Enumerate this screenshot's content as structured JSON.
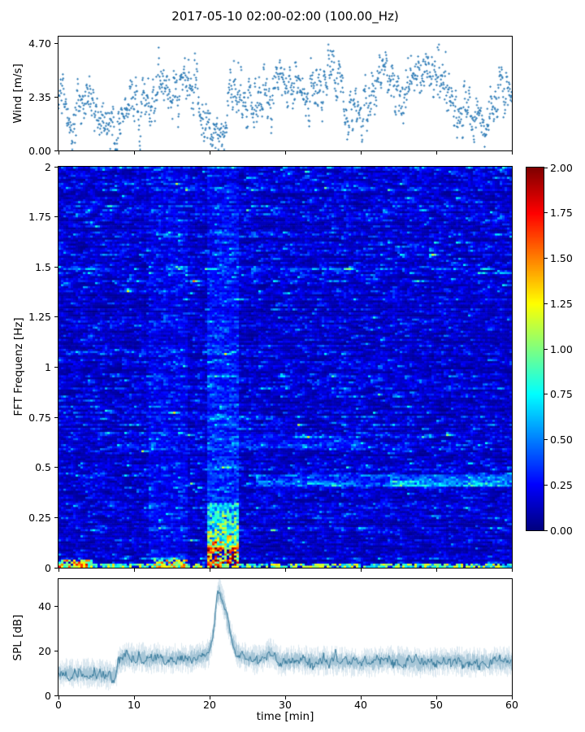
{
  "title": "2017-05-10 02:00-02:00 (100.00_Hz)",
  "x_axis": {
    "label": "time [min]",
    "tick_values": [
      0,
      10,
      20,
      30,
      40,
      50,
      60
    ],
    "tick_labels": [
      "0",
      "10",
      "20",
      "30",
      "40",
      "50",
      "60"
    ],
    "lim": [
      0,
      60
    ]
  },
  "wind_panel": {
    "ylabel": "Wind [m/s]",
    "ytick_values": [
      0,
      2.35,
      4.7
    ],
    "ytick_labels": [
      "0.00",
      "2.35",
      "4.70"
    ],
    "ylim": [
      0,
      5.0
    ]
  },
  "spectrogram_panel": {
    "ylabel": "FFT Frequenz [Hz]",
    "ytick_values": [
      0,
      0.25,
      0.5,
      0.75,
      1,
      1.25,
      1.5,
      1.75,
      2
    ],
    "ytick_labels": [
      "0",
      "0.25",
      "0.5",
      "0.75",
      "1",
      "1.25",
      "1.5",
      "1.75",
      "2"
    ],
    "ylim": [
      0,
      2
    ]
  },
  "colorbar": {
    "tick_values": [
      0,
      0.25,
      0.5,
      0.75,
      1,
      1.25,
      1.5,
      1.75,
      2
    ],
    "tick_labels": [
      "0.00",
      "0.25",
      "0.50",
      "0.75",
      "1.00",
      "1.25",
      "1.50",
      "1.75",
      "2.00"
    ],
    "lim": [
      0,
      2
    ],
    "colormap": "jet"
  },
  "spl_panel": {
    "ylabel": "SPL [dB]",
    "ytick_values": [
      0,
      20,
      40
    ],
    "ytick_labels": [
      "0",
      "20",
      "40"
    ],
    "ylim": [
      0,
      52
    ]
  },
  "chart_data": [
    {
      "type": "scatter",
      "name": "wind",
      "title": "wind speed vs time",
      "xlabel": "time [min]",
      "ylabel": "Wind [m/s]",
      "xlim": [
        0,
        60
      ],
      "ylim": [
        0,
        4.7
      ],
      "marker_color": "#2d7bb6",
      "n_points": 1350,
      "spread": 0.7,
      "mean_profile": [
        [
          0,
          2.3
        ],
        [
          1,
          1.8
        ],
        [
          2,
          1.4
        ],
        [
          3,
          2.0
        ],
        [
          4,
          2.3
        ],
        [
          5,
          1.7
        ],
        [
          6,
          1.6
        ],
        [
          7,
          0.9
        ],
        [
          8,
          1.0
        ],
        [
          9,
          1.6
        ],
        [
          10,
          2.3
        ],
        [
          11,
          2.6
        ],
        [
          12,
          1.9
        ],
        [
          13,
          1.7
        ],
        [
          14,
          2.6
        ],
        [
          15,
          2.9
        ],
        [
          16,
          2.8
        ],
        [
          17,
          2.9
        ],
        [
          18,
          2.2
        ],
        [
          19,
          1.3
        ],
        [
          20,
          0.9
        ],
        [
          21,
          0.8
        ],
        [
          22,
          1.5
        ],
        [
          23,
          2.7
        ],
        [
          24,
          2.9
        ],
        [
          25,
          2.8
        ],
        [
          26,
          2.4
        ],
        [
          27,
          2.6
        ],
        [
          28,
          2.9
        ],
        [
          29,
          2.8
        ],
        [
          30,
          3.0
        ],
        [
          31,
          3.0
        ],
        [
          32,
          2.8
        ],
        [
          33,
          2.9
        ],
        [
          34,
          2.6
        ],
        [
          35,
          2.8
        ],
        [
          36,
          3.0
        ],
        [
          37,
          3.1
        ],
        [
          38,
          2.2
        ],
        [
          39,
          1.2
        ],
        [
          40,
          1.0
        ],
        [
          41,
          1.3
        ],
        [
          42,
          2.4
        ],
        [
          43,
          2.8
        ],
        [
          44,
          2.9
        ],
        [
          45,
          2.8
        ],
        [
          46,
          2.5
        ],
        [
          47,
          2.7
        ],
        [
          48,
          3.0
        ],
        [
          49,
          3.1
        ],
        [
          50,
          2.9
        ],
        [
          51,
          3.0
        ],
        [
          52,
          2.7
        ],
        [
          53,
          2.4
        ],
        [
          54,
          1.8
        ],
        [
          55,
          1.2
        ],
        [
          56,
          0.9
        ],
        [
          57,
          1.5
        ],
        [
          58,
          2.3
        ],
        [
          59,
          2.4
        ],
        [
          60,
          2.5
        ]
      ]
    },
    {
      "type": "heatmap",
      "name": "fft-spectrogram",
      "title": "FFT spectrogram",
      "xlabel": "time [min]",
      "ylabel": "FFT Frequenz [Hz]",
      "xlim": [
        0,
        60
      ],
      "ylim": [
        0,
        2
      ],
      "clim": [
        0,
        2
      ],
      "colormap": "jet",
      "base_mean": 0.16,
      "grid": {
        "cols": 186,
        "rows": 198
      },
      "features": [
        {
          "name": "surface-band",
          "t0": 0,
          "t1": 60,
          "f0": 0,
          "f1": 0.025,
          "gain": 1.1,
          "mode": "hot"
        },
        {
          "name": "surface-hot-early",
          "t0": 0,
          "t1": 4.5,
          "f0": 0,
          "f1": 0.04,
          "gain": 1.5,
          "mode": "hot"
        },
        {
          "name": "surface-hot-mid",
          "t0": 12.5,
          "t1": 17,
          "f0": 0,
          "f1": 0.04,
          "gain": 1.3,
          "mode": "hot"
        },
        {
          "name": "event-core",
          "t0": 19.8,
          "t1": 24,
          "f0": 0,
          "f1": 0.1,
          "gain": 1.8,
          "mode": "hot"
        },
        {
          "name": "event-mid",
          "t0": 19.8,
          "t1": 24,
          "f0": 0.1,
          "f1": 0.32,
          "gain": 1.0,
          "mode": "add"
        },
        {
          "name": "event-upper",
          "t0": 19.8,
          "t1": 24,
          "f0": 0.32,
          "f1": 2,
          "gain": 0.2,
          "mode": "add"
        },
        {
          "name": "enhanced-12-17",
          "t0": 12,
          "t1": 17,
          "f0": 0,
          "f1": 2,
          "gain": 0.1,
          "mode": "add"
        },
        {
          "name": "band-0.44",
          "t0": 26,
          "t1": 60,
          "f0": 0.4,
          "f1": 0.465,
          "gain": 0.32,
          "mode": "add"
        },
        {
          "name": "band-0.44-strong",
          "t0": 44,
          "t1": 60,
          "f0": 0.405,
          "f1": 0.46,
          "gain": 0.22,
          "mode": "add"
        },
        {
          "name": "band-0.63",
          "t0": 23,
          "t1": 40,
          "f0": 0.6,
          "f1": 0.655,
          "gain": 0.14,
          "mode": "add"
        }
      ]
    },
    {
      "type": "line",
      "name": "spl",
      "title": "SPL vs time",
      "xlabel": "time [min]",
      "ylabel": "SPL [dB]",
      "xlim": [
        0,
        60
      ],
      "ylim_data": [
        0,
        48
      ],
      "line_color": "#3a85ae",
      "noise_band": 5,
      "mean_profile": [
        [
          0,
          10
        ],
        [
          2,
          9.5
        ],
        [
          4,
          10
        ],
        [
          6,
          9
        ],
        [
          7.5,
          9
        ],
        [
          8,
          16
        ],
        [
          9,
          17
        ],
        [
          10,
          16.5
        ],
        [
          11,
          17
        ],
        [
          12,
          16
        ],
        [
          13,
          17
        ],
        [
          14,
          16.5
        ],
        [
          15,
          16
        ],
        [
          16,
          17
        ],
        [
          17,
          16
        ],
        [
          18,
          17
        ],
        [
          19,
          17.5
        ],
        [
          19.8,
          19
        ],
        [
          20.3,
          24
        ],
        [
          20.7,
          33
        ],
        [
          21.0,
          44
        ],
        [
          21.3,
          47
        ],
        [
          21.6,
          44
        ],
        [
          22.0,
          39
        ],
        [
          22.4,
          33
        ],
        [
          22.8,
          27
        ],
        [
          23.2,
          22
        ],
        [
          23.6,
          19
        ],
        [
          24,
          18
        ],
        [
          25,
          17
        ],
        [
          26,
          16
        ],
        [
          27,
          17
        ],
        [
          28,
          19
        ],
        [
          28.5,
          18
        ],
        [
          29,
          16
        ],
        [
          30,
          15
        ],
        [
          32,
          16
        ],
        [
          34,
          15
        ],
        [
          36,
          15.5
        ],
        [
          38,
          15
        ],
        [
          40,
          14.5
        ],
        [
          42,
          15
        ],
        [
          44,
          15.5
        ],
        [
          46,
          15
        ],
        [
          48,
          14.5
        ],
        [
          50,
          15
        ],
        [
          52,
          15.5
        ],
        [
          54,
          15
        ],
        [
          56,
          14.5
        ],
        [
          58,
          15.5
        ],
        [
          60,
          15
        ]
      ]
    }
  ]
}
